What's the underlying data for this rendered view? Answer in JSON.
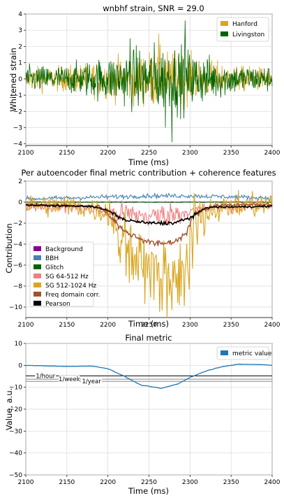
{
  "chart_data": [
    {
      "type": "line",
      "title": "wnbhf strain, SNR = 29.0",
      "xlabel": "Time (ms)",
      "ylabel": "Whitened strain",
      "xlim": [
        2100,
        2400
      ],
      "ylim": [
        -4.1,
        4
      ],
      "xticks": [
        "2100",
        "2150",
        "2200",
        "2250",
        "2300",
        "2350",
        "2400"
      ],
      "yticks": [
        "4",
        "3",
        "2",
        "1",
        "0",
        "−1",
        "−2",
        "−3",
        "−4"
      ],
      "grid": true,
      "legend_position": "top-right",
      "series": [
        {
          "name": "Hanford",
          "color": "#DAA520",
          "envelope": [
            [
              2100,
              0.9
            ],
            [
              2150,
              1.0
            ],
            [
              2190,
              1.4
            ],
            [
              2230,
              1.9
            ],
            [
              2260,
              2.3
            ],
            [
              2290,
              2.0
            ],
            [
              2320,
              1.5
            ],
            [
              2360,
              1.0
            ],
            [
              2400,
              0.9
            ]
          ],
          "peaks": [
            {
              "x": 2262,
              "y": 2.8
            }
          ]
        },
        {
          "name": "Livingston",
          "color": "#006400",
          "envelope": [
            [
              2100,
              1.0
            ],
            [
              2150,
              1.1
            ],
            [
              2190,
              1.6
            ],
            [
              2230,
              2.3
            ],
            [
              2260,
              2.7
            ],
            [
              2290,
              2.6
            ],
            [
              2320,
              1.8
            ],
            [
              2360,
              1.1
            ],
            [
              2400,
              1.0
            ]
          ],
          "peaks": [
            {
              "x": 2294,
              "y": 3.6
            },
            {
              "x": 2278,
              "y": -3.9
            },
            {
              "x": 2270,
              "y": -3.0
            },
            {
              "x": 2227,
              "y": 2.5
            }
          ]
        }
      ]
    },
    {
      "type": "line",
      "title": "Per autoencoder final metric contribution + coherence features",
      "xlabel": "Time (ms)",
      "ylabel": "Contribution",
      "xlim": [
        2100,
        2400
      ],
      "ylim": [
        -11,
        2
      ],
      "xticks": [
        "2100",
        "2150",
        "2200",
        "2250",
        "2300",
        "2350",
        "2400"
      ],
      "yticks": [
        "2",
        "0",
        "−2",
        "−4",
        "−6",
        "−8",
        "−10"
      ],
      "grid": true,
      "legend_position": "bottom-left",
      "series": [
        {
          "name": "Background",
          "color": "#8B008B",
          "points": [
            [
              2100,
              0.0
            ],
            [
              2400,
              0.0
            ]
          ],
          "noise": 0.05
        },
        {
          "name": "BBH",
          "color": "#4682B4",
          "points": [
            [
              2100,
              0.3
            ],
            [
              2200,
              0.5
            ],
            [
              2250,
              0.6
            ],
            [
              2300,
              0.6
            ],
            [
              2400,
              0.4
            ]
          ],
          "noise": 0.3
        },
        {
          "name": "Glitch",
          "color": "#006400",
          "points": [
            [
              2100,
              0.0
            ],
            [
              2400,
              0.0
            ]
          ],
          "noise": 0.05
        },
        {
          "name": "SG 64-512 Hz",
          "color": "#F08080",
          "points": [
            [
              2100,
              -0.3
            ],
            [
              2160,
              -0.5
            ],
            [
              2200,
              -0.9
            ],
            [
              2250,
              -1.4
            ],
            [
              2290,
              -1.0
            ],
            [
              2330,
              -0.5
            ],
            [
              2400,
              -0.3
            ]
          ],
          "noise": 0.8
        },
        {
          "name": "SG 512-1024 Hz",
          "color": "#DAA520",
          "points": [
            [
              2100,
              -0.2
            ],
            [
              2160,
              -0.4
            ],
            [
              2200,
              -1.0
            ],
            [
              2220,
              -3.0
            ],
            [
              2240,
              -5.0
            ],
            [
              2260,
              -6.5
            ],
            [
              2280,
              -7.0
            ],
            [
              2295,
              -5.5
            ],
            [
              2305,
              -1.5
            ],
            [
              2330,
              -0.6
            ],
            [
              2400,
              -0.2
            ]
          ],
          "noise": 1.6
        },
        {
          "name": "Freq domain corr.",
          "color": "#A0522D",
          "points": [
            [
              2100,
              -0.2
            ],
            [
              2190,
              -0.4
            ],
            [
              2205,
              -1.5
            ],
            [
              2220,
              -2.8
            ],
            [
              2240,
              -3.5
            ],
            [
              2260,
              -4.0
            ],
            [
              2280,
              -3.8
            ],
            [
              2295,
              -3.0
            ],
            [
              2305,
              -1.2
            ],
            [
              2330,
              -0.3
            ],
            [
              2400,
              -0.2
            ]
          ],
          "noise": 0.2
        },
        {
          "name": "Pearson",
          "color": "#000000",
          "points": [
            [
              2100,
              -0.3
            ],
            [
              2180,
              -0.4
            ],
            [
              2200,
              -0.8
            ],
            [
              2220,
              -1.7
            ],
            [
              2250,
              -2.0
            ],
            [
              2280,
              -2.0
            ],
            [
              2300,
              -1.5
            ],
            [
              2320,
              -0.5
            ],
            [
              2400,
              -0.4
            ]
          ],
          "noise": 0.12
        }
      ]
    },
    {
      "type": "line",
      "title": "Final metric",
      "xlabel": "Time (ms)",
      "ylabel": "Value, a.u.",
      "xlim": [
        2100,
        2400
      ],
      "ylim": [
        -50,
        10
      ],
      "xticks": [
        "2100",
        "2150",
        "2200",
        "2250",
        "2300",
        "2350",
        "2400"
      ],
      "yticks": [
        "10",
        "0",
        "−10",
        "−20",
        "−30",
        "−40",
        "−50"
      ],
      "grid": true,
      "legend_position": "top-right",
      "series": [
        {
          "name": "metric value",
          "color": "#1f77b4",
          "points": [
            [
              2100,
              0.0
            ],
            [
              2150,
              -0.5
            ],
            [
              2180,
              -0.3
            ],
            [
              2200,
              -1.5
            ],
            [
              2220,
              -5.0
            ],
            [
              2240,
              -9.0
            ],
            [
              2265,
              -10.5
            ],
            [
              2285,
              -8.5
            ],
            [
              2300,
              -5.5
            ],
            [
              2320,
              -2.5
            ],
            [
              2340,
              -0.5
            ],
            [
              2360,
              0.5
            ],
            [
              2390,
              0.3
            ],
            [
              2400,
              0.0
            ]
          ]
        }
      ],
      "thresholds": [
        {
          "label": "1/hour",
          "value": -4.8
        },
        {
          "label": "1/week",
          "value": -6.3
        },
        {
          "label": "1/year",
          "value": -7.3
        }
      ]
    }
  ]
}
